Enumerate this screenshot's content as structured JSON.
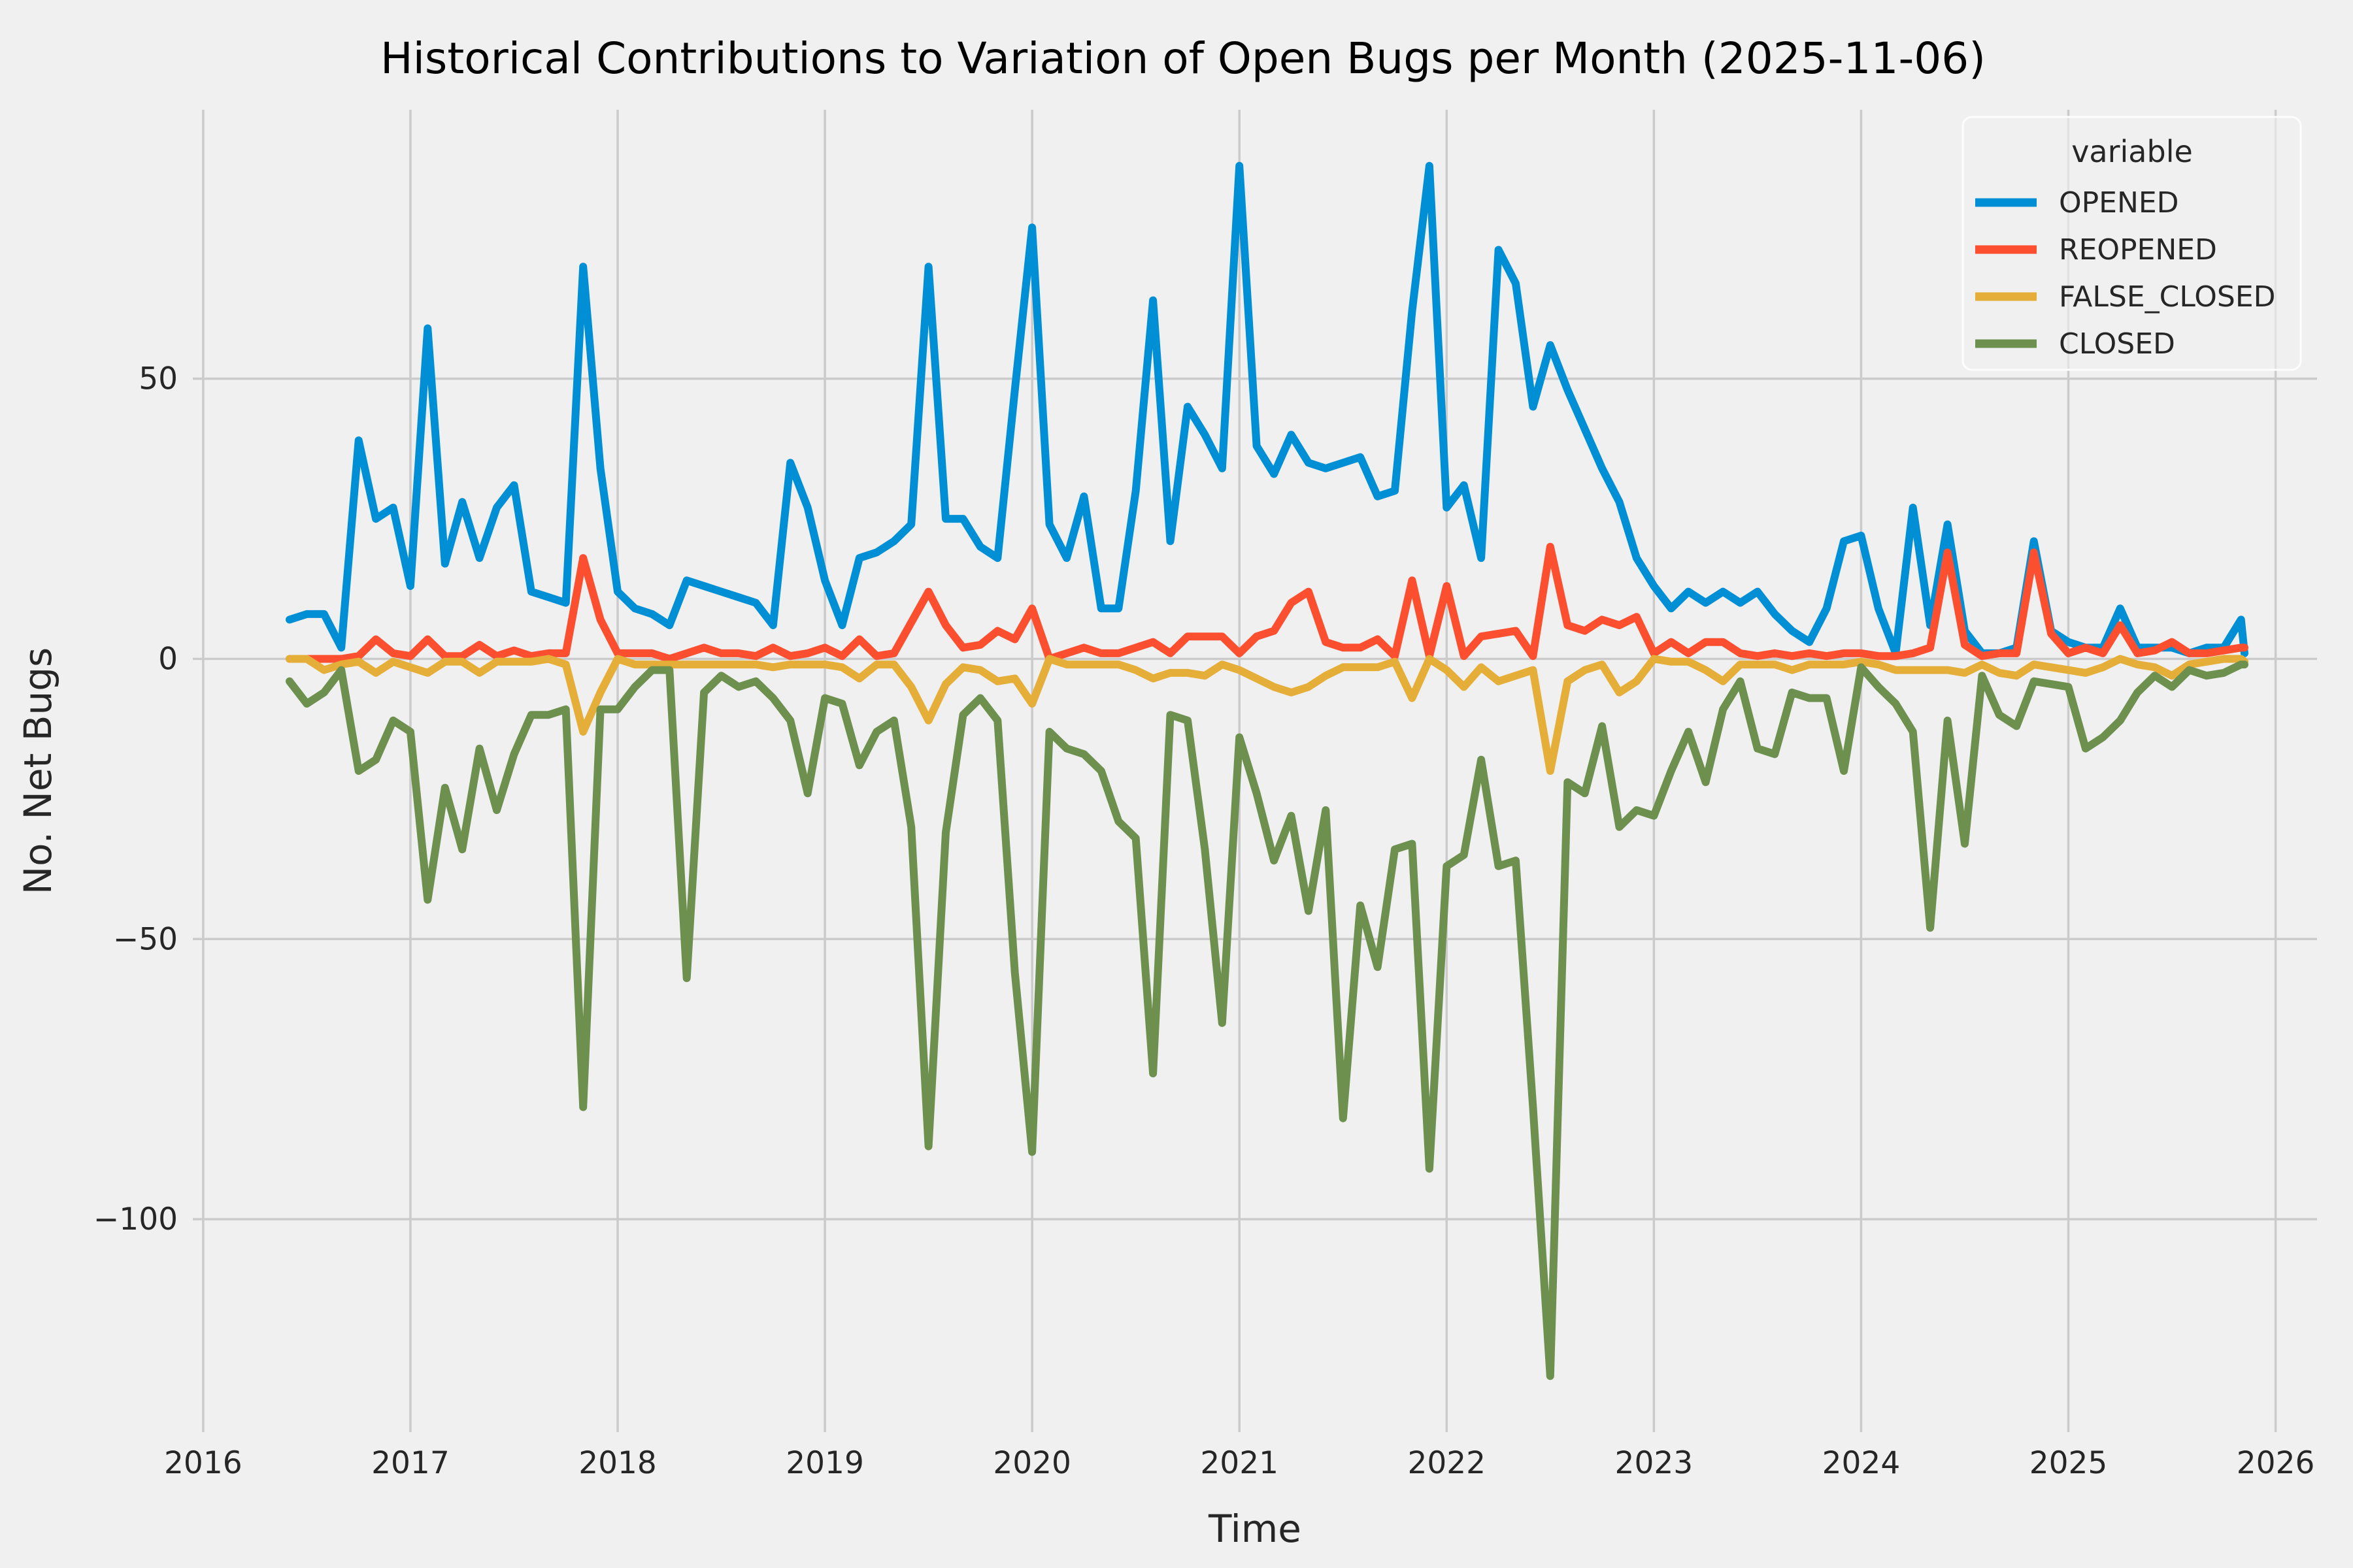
{
  "chart_data": {
    "type": "line",
    "title": "Historical Contributions to Variation of Open Bugs per Month (2025-11-06)",
    "xlabel": "Time",
    "ylabel": "No. Net Bugs",
    "background_color": "#f0f0f0",
    "grid_color": "#cbcbcb",
    "grid": "on",
    "legend_position": "upper right",
    "legend_title": "variable",
    "x_ticks": [
      "2016",
      "2017",
      "2018",
      "2019",
      "2020",
      "2021",
      "2022",
      "2023",
      "2024",
      "2025",
      "2026"
    ],
    "y_ticks": [
      50,
      0,
      -50,
      -100
    ],
    "y_tick_labels": [
      "50",
      "0",
      "−50",
      "−100"
    ],
    "xlim": [
      2015.95,
      2026.2
    ],
    "ylim": [
      -138,
      98
    ],
    "x": [
      "2016-06",
      "2016-07",
      "2016-08",
      "2016-09",
      "2016-10",
      "2016-11",
      "2016-12",
      "2017-01",
      "2017-02",
      "2017-03",
      "2017-04",
      "2017-05",
      "2017-06",
      "2017-07",
      "2017-08",
      "2017-09",
      "2017-10",
      "2017-11",
      "2017-12",
      "2018-01",
      "2018-02",
      "2018-03",
      "2018-04",
      "2018-05",
      "2018-06",
      "2018-07",
      "2018-08",
      "2018-09",
      "2018-10",
      "2018-11",
      "2018-12",
      "2019-01",
      "2019-02",
      "2019-03",
      "2019-04",
      "2019-05",
      "2019-06",
      "2019-07",
      "2019-08",
      "2019-09",
      "2019-10",
      "2019-11",
      "2019-12",
      "2020-01",
      "2020-02",
      "2020-03",
      "2020-04",
      "2020-05",
      "2020-06",
      "2020-07",
      "2020-08",
      "2020-09",
      "2020-10",
      "2020-11",
      "2020-12",
      "2021-01",
      "2021-02",
      "2021-03",
      "2021-04",
      "2021-05",
      "2021-06",
      "2021-07",
      "2021-08",
      "2021-09",
      "2021-10",
      "2021-11",
      "2021-12",
      "2022-01",
      "2022-02",
      "2022-03",
      "2022-04",
      "2022-05",
      "2022-06",
      "2022-07",
      "2022-08",
      "2022-09",
      "2022-10",
      "2022-11",
      "2022-12",
      "2023-01",
      "2023-02",
      "2023-03",
      "2023-04",
      "2023-05",
      "2023-06",
      "2023-07",
      "2023-08",
      "2023-09",
      "2023-10",
      "2023-11",
      "2023-12",
      "2024-01",
      "2024-02",
      "2024-03",
      "2024-04",
      "2024-05",
      "2024-06",
      "2024-07",
      "2024-08",
      "2024-09",
      "2024-10",
      "2024-11",
      "2024-12",
      "2025-01",
      "2025-02",
      "2025-03",
      "2025-04",
      "2025-05",
      "2025-06",
      "2025-07",
      "2025-08",
      "2025-09",
      "2025-10",
      "2025-11",
      "2025-11-06"
    ],
    "series": [
      {
        "name": "OPENED",
        "color": "#008fd5",
        "values": [
          7,
          8,
          8,
          2,
          39,
          25,
          27,
          13,
          59,
          17,
          28,
          18,
          27,
          31,
          12,
          11,
          10,
          70,
          34,
          12,
          9,
          8,
          6,
          14,
          13,
          12,
          11,
          10,
          6,
          35,
          27,
          14,
          6,
          18,
          19,
          21,
          24,
          70,
          25,
          25,
          20,
          18,
          48,
          77,
          24,
          18,
          29,
          9,
          9,
          30,
          64,
          21,
          45,
          40,
          34,
          88,
          38,
          33,
          40,
          35,
          34,
          35,
          36,
          29,
          30,
          62,
          88,
          27,
          31,
          18,
          73,
          67,
          45,
          56,
          48,
          41,
          34,
          28,
          18,
          13,
          9,
          12,
          10,
          12,
          10,
          12,
          8,
          5,
          3,
          9,
          21,
          22,
          9,
          1,
          27,
          6,
          24,
          5,
          1,
          1,
          2,
          21,
          5,
          3,
          2,
          2,
          9,
          2,
          2,
          2,
          1,
          2,
          2,
          7,
          1
        ]
      },
      {
        "name": "REOPENED",
        "color": "#fc4f30",
        "values": [
          0,
          0,
          0,
          0,
          0.5,
          3.5,
          1,
          0.5,
          3.5,
          0.5,
          0.5,
          2.5,
          0.5,
          1.5,
          0.5,
          1,
          1,
          18,
          7,
          1,
          1,
          1,
          0,
          1,
          2,
          1,
          1,
          0.5,
          2,
          0.5,
          1,
          2,
          0.5,
          3.5,
          0.5,
          1,
          6.5,
          12,
          6,
          2,
          2.5,
          5,
          3.5,
          9,
          0,
          1,
          2,
          1,
          1,
          2,
          3,
          1,
          4,
          4,
          4,
          1,
          4,
          5,
          10,
          12,
          3,
          2,
          2,
          3.5,
          0.5,
          14,
          0.5,
          13,
          0.5,
          4,
          4.5,
          5,
          0.5,
          20,
          6,
          5,
          7,
          6,
          7.5,
          1,
          3,
          1,
          3,
          3,
          1,
          0.5,
          1,
          0.5,
          1,
          0.5,
          1,
          1,
          0.5,
          0.5,
          1,
          2,
          19,
          2.5,
          0.5,
          1,
          1,
          19,
          4.5,
          1,
          2,
          1,
          6,
          1,
          1.5,
          3,
          1,
          1,
          1.5,
          2,
          2
        ]
      },
      {
        "name": "FALSE_CLOSED",
        "color": "#e5ae38",
        "values": [
          0,
          0,
          -2,
          -1,
          -0.5,
          -2.5,
          -0.5,
          -1.5,
          -2.5,
          -0.5,
          -0.5,
          -2.5,
          -0.5,
          -0.5,
          -0.5,
          0,
          -1,
          -13,
          -6,
          0,
          -1,
          -1,
          -1,
          -1,
          -1,
          -1,
          -1,
          -1,
          -1.5,
          -1,
          -1,
          -1,
          -1.5,
          -3.5,
          -1,
          -1,
          -5,
          -11,
          -4.5,
          -1.5,
          -2,
          -4,
          -3.5,
          -8,
          0,
          -1,
          -1,
          -1,
          -1,
          -2,
          -3.5,
          -2.5,
          -2.5,
          -3,
          -1,
          -2,
          -3.5,
          -5,
          -6,
          -5,
          -3,
          -1.5,
          -1.5,
          -1.5,
          -0.5,
          -7,
          0,
          -2,
          -5,
          -1.5,
          -4,
          -3,
          -2,
          -20,
          -4,
          -2,
          -1,
          -6,
          -4,
          0,
          -0.5,
          -0.5,
          -2,
          -4,
          -1,
          -1,
          -1,
          -2,
          -1,
          -1,
          -1,
          -0.5,
          -1,
          -2,
          -2,
          -2,
          -2,
          -2.5,
          -1,
          -2.5,
          -3,
          -1,
          -1.5,
          -2,
          -2.5,
          -1.5,
          0,
          -1,
          -1.5,
          -3,
          -1,
          -0.5,
          0,
          0,
          -0.5
        ]
      },
      {
        "name": "CLOSED",
        "color": "#6d904f",
        "values": [
          -4,
          -8,
          -6,
          -2,
          -20,
          -18,
          -11,
          -13,
          -43,
          -23,
          -34,
          -16,
          -27,
          -17,
          -10,
          -10,
          -9,
          -80,
          -9,
          -9,
          -5,
          -2,
          -2,
          -57,
          -6,
          -3,
          -5,
          -4,
          -7,
          -11,
          -24,
          -7,
          -8,
          -19,
          -13,
          -11,
          -30,
          -87,
          -31,
          -10,
          -7,
          -11,
          -56,
          -88,
          -13,
          -16,
          -17,
          -20,
          -29,
          -32,
          -74,
          -10,
          -11,
          -34,
          -65,
          -14,
          -24,
          -36,
          -28,
          -45,
          -27,
          -82,
          -44,
          -55,
          -34,
          -33,
          -91,
          -37,
          -35,
          -18,
          -37,
          -36,
          -80,
          -128,
          -22,
          -24,
          -12,
          -30,
          -27,
          -28,
          -20,
          -13,
          -22,
          -9,
          -4,
          -16,
          -17,
          -6,
          -7,
          -7,
          -20,
          -1.5,
          -5,
          -8,
          -13,
          -48,
          -11,
          -33,
          -3,
          -10,
          -12,
          -4,
          -4.5,
          -5,
          -16,
          -14,
          -11,
          -6,
          -3,
          -5,
          -2,
          -3,
          -2.5,
          -1,
          -1
        ]
      }
    ]
  }
}
